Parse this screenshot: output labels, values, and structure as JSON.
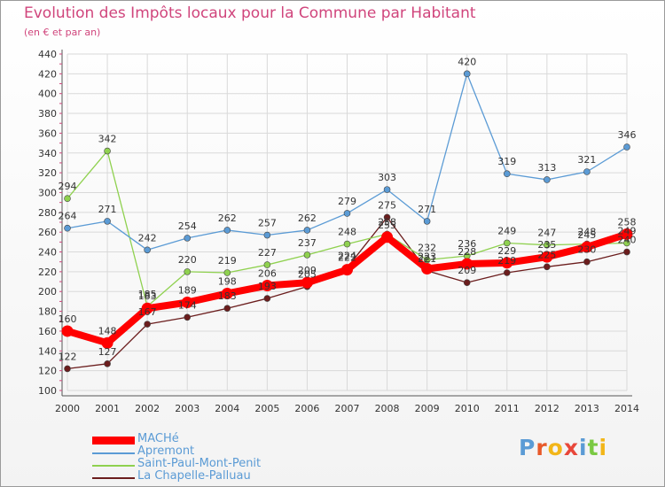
{
  "chart_data": {
    "type": "line",
    "title": "Evolution des Impôts locaux pour la Commune par Habitant",
    "subtitle": "(en € et par an)",
    "xlabel": "",
    "ylabel": "",
    "x": [
      "2000",
      "2001",
      "2002",
      "2003",
      "2004",
      "2005",
      "2006",
      "2007",
      "2008",
      "2009",
      "2010",
      "2011",
      "2012",
      "2013",
      "2014"
    ],
    "ylim": [
      100,
      440
    ],
    "yticks": [
      "100",
      "120",
      "140",
      "160",
      "180",
      "200",
      "220",
      "240",
      "260",
      "280",
      "300",
      "320",
      "340",
      "360",
      "380",
      "400",
      "420",
      "440"
    ],
    "grid": true,
    "legend_position": "bottom-left",
    "series": [
      {
        "name": "La Chapelle-Palluau",
        "color": "#6b1d1d",
        "values": [
          122,
          127,
          167,
          174,
          183,
          193,
          205,
          224,
          275,
          221,
          209,
          219,
          225,
          230,
          240
        ],
        "labels": [
          "122",
          "127",
          "167",
          "174",
          "183",
          "193",
          "205",
          "224",
          "275",
          "221",
          "209",
          "219",
          "225",
          "230",
          "240"
        ]
      },
      {
        "name": "Saint-Paul-Mont-Penit",
        "color": "#8fd14f",
        "values": [
          294,
          342,
          185,
          220,
          219,
          227,
          237,
          248,
          258,
          232,
          236,
          249,
          247,
          248,
          249
        ],
        "labels": [
          "294",
          "342",
          "185",
          "220",
          "219",
          "227",
          "237",
          "248",
          "258",
          "232",
          "236",
          "249",
          "247",
          "248",
          "249"
        ]
      },
      {
        "name": "Apremont",
        "color": "#5b9bd5",
        "values": [
          264,
          271,
          242,
          254,
          262,
          257,
          262,
          279,
          303,
          271,
          420,
          319,
          313,
          321,
          346
        ],
        "labels": [
          "264",
          "271",
          "242",
          "254",
          "262",
          "257",
          "262",
          "279",
          "303",
          "271",
          "420",
          "319",
          "313",
          "321",
          "346"
        ]
      },
      {
        "name": "MACHé",
        "color": "#ff0000",
        "values": [
          160,
          148,
          183,
          189,
          198,
          206,
          209,
          222,
          255,
          223,
          228,
          229,
          235,
          245,
          258
        ],
        "labels": [
          "160",
          "148",
          "183",
          "189",
          "198",
          "206",
          "209",
          "222",
          "255",
          "223",
          "228",
          "229",
          "235",
          "245",
          "258"
        ]
      }
    ]
  },
  "legend": [
    {
      "name": "MACHé",
      "color": "#ff0000",
      "text_color": "#5b9bd5",
      "weight": "thick"
    },
    {
      "name": "Apremont",
      "color": "#5b9bd5",
      "text_color": "#5b9bd5",
      "weight": "thin"
    },
    {
      "name": "Saint-Paul-Mont-Penit",
      "color": "#8fd14f",
      "text_color": "#5b9bd5",
      "weight": "thin"
    },
    {
      "name": "La Chapelle-Palluau",
      "color": "#6b1d1d",
      "text_color": "#5b9bd5",
      "weight": "thin"
    }
  ],
  "logo": {
    "text": "Proxiti",
    "letter_colors": [
      "#5b9bd5",
      "#e85a2a",
      "#f2b619",
      "#e8473a",
      "#5b9bd5",
      "#7ac943",
      "#f2b619"
    ]
  }
}
